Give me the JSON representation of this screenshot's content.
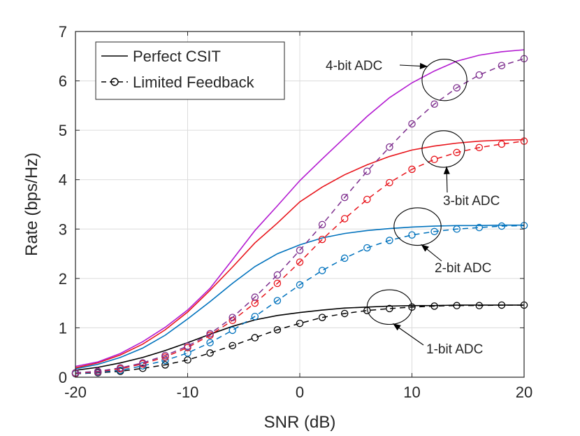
{
  "chart_data": {
    "type": "line",
    "xlabel": "SNR (dB)",
    "ylabel": "Rate (bps/Hz)",
    "xlim": [
      -20,
      20
    ],
    "ylim": [
      0,
      7
    ],
    "xticks": [
      -20,
      -10,
      0,
      10,
      20
    ],
    "yticks": [
      0,
      1,
      2,
      3,
      4,
      5,
      6,
      7
    ],
    "xtick_labels": [
      "-20",
      "-10",
      "0",
      "10",
      "20"
    ],
    "ytick_labels": [
      "0",
      "1",
      "2",
      "3",
      "4",
      "5",
      "6",
      "7"
    ],
    "grid": true,
    "legend": {
      "position": "top-left",
      "entries": [
        {
          "label": "Perfect CSIT",
          "style": "solid"
        },
        {
          "label": "Limited Feedback",
          "style": "dashed-circle"
        }
      ]
    },
    "perfect_x": [
      -20,
      -18,
      -16,
      -14,
      -12,
      -10,
      -8,
      -6,
      -4,
      -2,
      0,
      2,
      4,
      6,
      8,
      10,
      12,
      14,
      16,
      18,
      20
    ],
    "feedback_x": [
      -20,
      -18,
      -16,
      -14,
      -12,
      -10,
      -8,
      -6,
      -4,
      -2,
      0,
      2,
      4,
      6,
      8,
      10,
      12,
      14,
      16,
      18,
      20
    ],
    "series": [
      {
        "name": "1-bit ADC",
        "color": "#000000",
        "perfect": [
          0.14,
          0.2,
          0.29,
          0.4,
          0.54,
          0.7,
          0.87,
          1.03,
          1.16,
          1.25,
          1.31,
          1.36,
          1.4,
          1.42,
          1.44,
          1.45,
          1.45,
          1.46,
          1.46,
          1.46,
          1.46
        ],
        "feedback": [
          0.07,
          0.09,
          0.12,
          0.18,
          0.25,
          0.35,
          0.49,
          0.64,
          0.8,
          0.96,
          1.09,
          1.21,
          1.29,
          1.35,
          1.39,
          1.42,
          1.44,
          1.45,
          1.45,
          1.46,
          1.46
        ]
      },
      {
        "name": "2-bit ADC",
        "color": "#0072BD",
        "perfect": [
          0.17,
          0.26,
          0.4,
          0.59,
          0.85,
          1.18,
          1.53,
          1.9,
          2.24,
          2.5,
          2.68,
          2.82,
          2.91,
          2.97,
          3.01,
          3.04,
          3.06,
          3.07,
          3.07,
          3.08,
          3.08
        ],
        "feedback": [
          0.07,
          0.1,
          0.14,
          0.23,
          0.34,
          0.49,
          0.7,
          0.95,
          1.23,
          1.55,
          1.87,
          2.16,
          2.41,
          2.62,
          2.77,
          2.88,
          2.95,
          3.0,
          3.03,
          3.06,
          3.07
        ]
      },
      {
        "name": "3-bit ADC",
        "color": "#E8141B",
        "perfect": [
          0.19,
          0.29,
          0.45,
          0.67,
          0.96,
          1.32,
          1.76,
          2.23,
          2.72,
          3.12,
          3.55,
          3.85,
          4.1,
          4.3,
          4.47,
          4.6,
          4.68,
          4.74,
          4.78,
          4.8,
          4.81
        ],
        "feedback": [
          0.08,
          0.11,
          0.17,
          0.27,
          0.41,
          0.6,
          0.85,
          1.15,
          1.5,
          1.9,
          2.33,
          2.79,
          3.21,
          3.6,
          3.94,
          4.21,
          4.41,
          4.55,
          4.65,
          4.72,
          4.78
        ]
      },
      {
        "name": "4-bit ADC",
        "color": "#B31AD1",
        "perfect": [
          0.22,
          0.31,
          0.48,
          0.72,
          1.01,
          1.36,
          1.8,
          2.38,
          2.97,
          3.47,
          3.98,
          4.42,
          4.85,
          5.28,
          5.66,
          5.96,
          6.2,
          6.4,
          6.52,
          6.59,
          6.63
        ],
        "feedback": [
          0.09,
          0.12,
          0.19,
          0.29,
          0.44,
          0.63,
          0.88,
          1.21,
          1.62,
          2.07,
          2.57,
          3.09,
          3.64,
          4.17,
          4.66,
          5.13,
          5.53,
          5.86,
          6.12,
          6.31,
          6.45
        ]
      }
    ],
    "feedback_marker_colors": [
      "#000000",
      "#0072BD",
      "#E8141B",
      "#7E2F8E"
    ],
    "feedback_line_colors": [
      "#000000",
      "#0072BD",
      "#E8141B",
      "#7E2F8E"
    ],
    "annotations": [
      {
        "text": "1-bit ADC",
        "ellipse_center": [
          8,
          1.42
        ],
        "ellipse_radius": [
          2.0,
          0.35
        ]
      },
      {
        "text": "2-bit ADC",
        "ellipse_center": [
          10.5,
          3.05
        ],
        "ellipse_radius": [
          2.1,
          0.38
        ]
      },
      {
        "text": "3-bit ADC",
        "ellipse_center": [
          12.8,
          4.62
        ],
        "ellipse_radius": [
          1.9,
          0.37
        ]
      },
      {
        "text": "4-bit ADC",
        "ellipse_center": [
          12.9,
          6.02
        ],
        "ellipse_radius": [
          2.0,
          0.42
        ]
      }
    ]
  }
}
